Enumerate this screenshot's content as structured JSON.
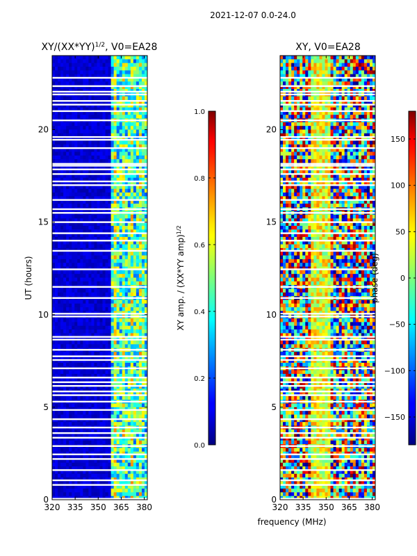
{
  "suptitle": "2021-12-07 0.0-24.0",
  "chart_data": [
    {
      "type": "heatmap",
      "title": "XY/(XX*YY)",
      "title_exponent": "1/2",
      "title_suffix": ", V0=EA28",
      "xlabel": "",
      "ylabel": "UT (hours)",
      "xlim": [
        320,
        382
      ],
      "ylim": [
        0,
        24
      ],
      "xticks": [
        320,
        335,
        350,
        365,
        380
      ],
      "yticks": [
        0,
        5,
        10,
        15,
        20
      ],
      "colorbar": {
        "label": "XY amp. / (XX*YY amp)",
        "label_exponent": "1/2",
        "range": [
          0.0,
          1.0
        ],
        "ticks": [
          "0.0",
          "0.2",
          "0.4",
          "0.6",
          "0.8",
          "1.0"
        ]
      },
      "flagged_hours": [
        0.05,
        0.8,
        1.05,
        1.6,
        2.2,
        2.45,
        2.9,
        3.35,
        3.6,
        3.9,
        4.35,
        4.85,
        5.3,
        5.65,
        5.85,
        6.15,
        6.35,
        6.6,
        7.1,
        7.55,
        7.75,
        8.1,
        8.65,
        8.8,
        9.9,
        10.05,
        10.9,
        11.5,
        12.45,
        13.45,
        14.0,
        14.4,
        15.0,
        15.5,
        15.7,
        16.2,
        17.0,
        17.2,
        17.6,
        17.85,
        18.05,
        18.15,
        19.0,
        19.45,
        19.6,
        20.5,
        21.0,
        21.35,
        21.55,
        21.9,
        22.05,
        22.35,
        22.8
      ]
    },
    {
      "type": "heatmap",
      "title": "XY, V0=EA28",
      "xlabel": "frequency (MHz)",
      "ylabel": "",
      "xlim": [
        320,
        382
      ],
      "ylim": [
        0,
        24
      ],
      "xticks": [
        320,
        335,
        350,
        365,
        380
      ],
      "yticks": [
        0,
        5,
        10,
        15,
        20
      ],
      "colorbar": {
        "label": "phase (deg)",
        "range": [
          -180,
          180
        ],
        "ticks": [
          "−150",
          "−100",
          "−50",
          "0",
          "50",
          "100",
          "150"
        ]
      },
      "flagged_hours": [
        0.05,
        0.8,
        1.05,
        1.6,
        2.2,
        2.45,
        2.9,
        3.35,
        3.6,
        3.9,
        4.35,
        4.85,
        5.3,
        5.65,
        5.85,
        6.15,
        6.35,
        6.6,
        7.1,
        7.55,
        7.75,
        8.1,
        8.65,
        8.8,
        9.9,
        10.05,
        10.9,
        11.5,
        12.45,
        13.45,
        14.0,
        14.4,
        15.0,
        15.5,
        15.7,
        16.2,
        17.0,
        17.2,
        17.6,
        17.85,
        18.05,
        18.15,
        19.0,
        19.45,
        19.6,
        20.5,
        21.0,
        21.35,
        21.55,
        21.9,
        22.05,
        22.35,
        22.8
      ]
    }
  ]
}
